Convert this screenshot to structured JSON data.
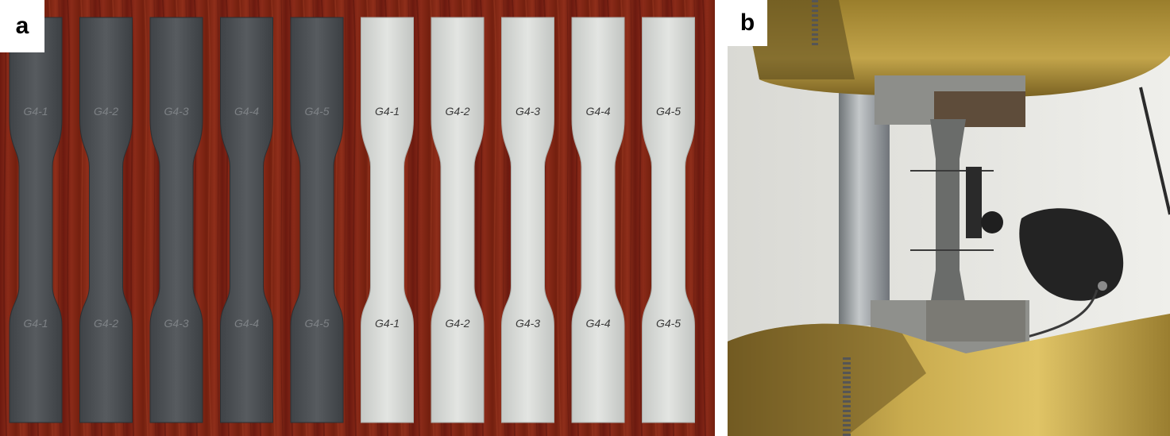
{
  "panels": {
    "a": {
      "label": "a",
      "specimens": [
        {
          "top_label": "G4-1",
          "bottom_label": "G4-1",
          "shade": "dark"
        },
        {
          "top_label": "G4-2",
          "bottom_label": "G4-2",
          "shade": "dark"
        },
        {
          "top_label": "G4-3",
          "bottom_label": "G4-3",
          "shade": "dark"
        },
        {
          "top_label": "G4-4",
          "bottom_label": "G4-4",
          "shade": "dark"
        },
        {
          "top_label": "G4-5",
          "bottom_label": "G4-5",
          "shade": "dark"
        },
        {
          "top_label": "G4-1",
          "bottom_label": "G4-1",
          "shade": "light"
        },
        {
          "top_label": "G4-2",
          "bottom_label": "G4-2",
          "shade": "light"
        },
        {
          "top_label": "G4-3",
          "bottom_label": "G4-3",
          "shade": "light"
        },
        {
          "top_label": "G4-4",
          "bottom_label": "G4-4",
          "shade": "light"
        },
        {
          "top_label": "G4-5",
          "bottom_label": "G4-5",
          "shade": "light"
        }
      ],
      "colors": {
        "background": "#7a1f14",
        "dark_specimen": "#4a4e52",
        "light_specimen": "#d7d9d6"
      }
    },
    "b": {
      "label": "b",
      "colors": {
        "wall": "#e6e6e2",
        "grip": "#b89a3c",
        "column": "#9aa0a4",
        "extensometer": "#232323"
      }
    }
  }
}
